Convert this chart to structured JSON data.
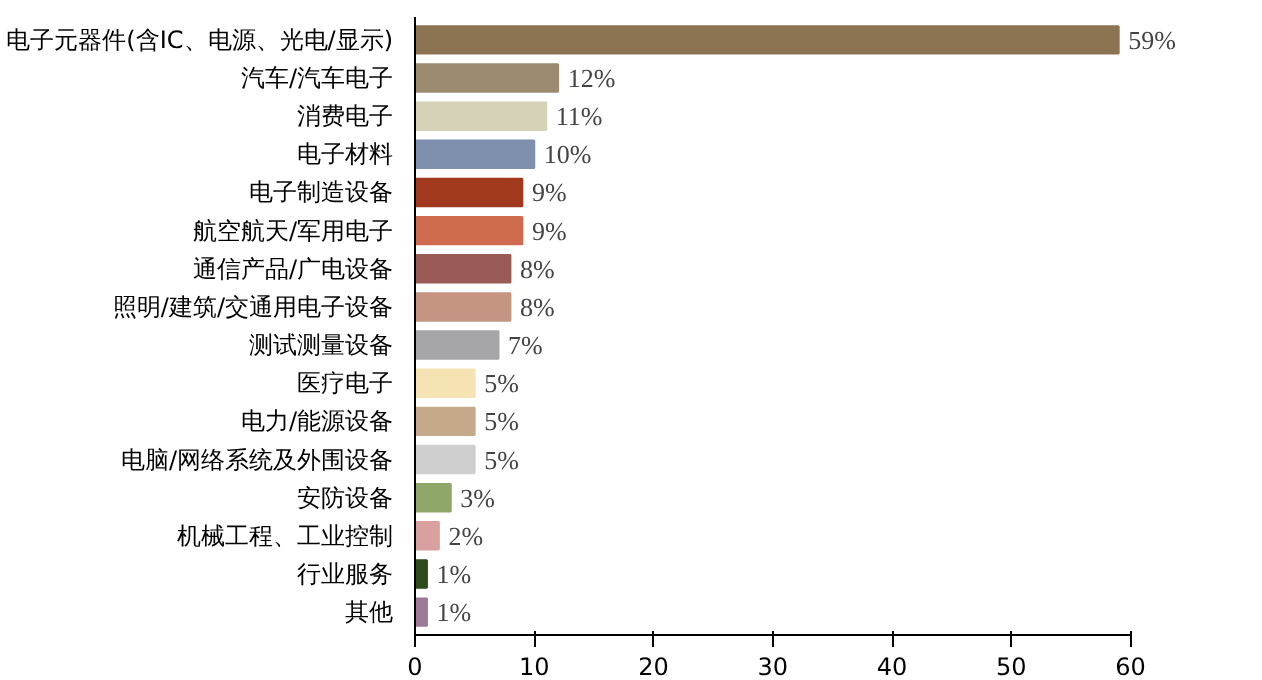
{
  "chart_data": {
    "type": "bar",
    "orientation": "horizontal",
    "categories": [
      "电子元器件(含IC、电源、光电/显示)",
      "汽车/汽车电子",
      "消费电子",
      "电子材料",
      "电子制造设备",
      "航空航天/军用电子",
      "通信产品/广电设备",
      "照明/建筑/交通用电子设备",
      "测试测量设备",
      "医疗电子",
      "电力/能源设备",
      "电脑/网络系统及外围设备",
      "安防设备",
      "机械工程、工业控制",
      "行业服务",
      "其他"
    ],
    "values": [
      59,
      12,
      11,
      10,
      9,
      9,
      8,
      8,
      7,
      5,
      5,
      5,
      3,
      2,
      1,
      1
    ],
    "value_labels": [
      "59%",
      "12%",
      "11%",
      "10%",
      "9%",
      "9%",
      "8%",
      "8%",
      "7%",
      "5%",
      "5%",
      "5%",
      "3%",
      "2%",
      "1%",
      "1%"
    ],
    "colors": [
      "#8c7452",
      "#9c8a70",
      "#d6d2b8",
      "#7f8fae",
      "#a0391e",
      "#cf6b4e",
      "#9a5a55",
      "#c59582",
      "#a6a6a8",
      "#f5e3b3",
      "#c4aa8a",
      "#cfcfcf",
      "#8fa86a",
      "#d9a0a0",
      "#2d4a1a",
      "#9a7a95"
    ],
    "xlim": [
      0,
      60
    ],
    "xticks": [
      0,
      10,
      20,
      30,
      40,
      50,
      60
    ],
    "grid": false
  }
}
